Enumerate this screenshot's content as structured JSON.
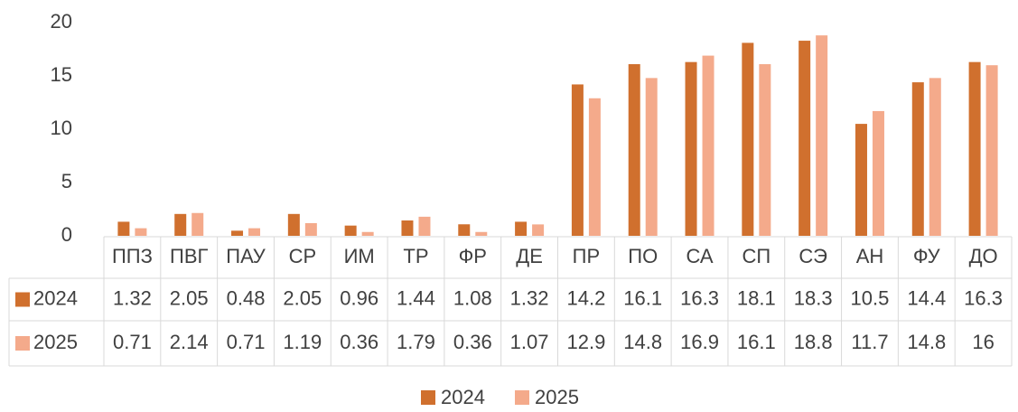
{
  "chart_data": {
    "type": "bar",
    "categories": [
      "ППЗ",
      "ПВГ",
      "ПАУ",
      "СР",
      "ИМ",
      "ТР",
      "ФР",
      "ДЕ",
      "ПР",
      "ПО",
      "СА",
      "СП",
      "СЭ",
      "АН",
      "ФУ",
      "ДО"
    ],
    "series": [
      {
        "name": "2024",
        "color": "#d0702e",
        "values": [
          1.32,
          2.05,
          0.48,
          2.05,
          0.96,
          1.44,
          1.08,
          1.32,
          14.2,
          16.1,
          16.3,
          18.1,
          18.3,
          10.5,
          14.4,
          16.3
        ]
      },
      {
        "name": "2025",
        "color": "#f4aa8b",
        "values": [
          0.71,
          2.14,
          0.71,
          1.19,
          0.36,
          1.79,
          0.36,
          1.07,
          12.9,
          14.8,
          16.9,
          16.1,
          18.8,
          11.7,
          14.8,
          16
        ]
      }
    ],
    "ylim": [
      0,
      20
    ],
    "yticks": [
      0,
      5,
      10,
      15,
      20
    ],
    "grid": false,
    "legend": "bottom",
    "data_table": true
  }
}
